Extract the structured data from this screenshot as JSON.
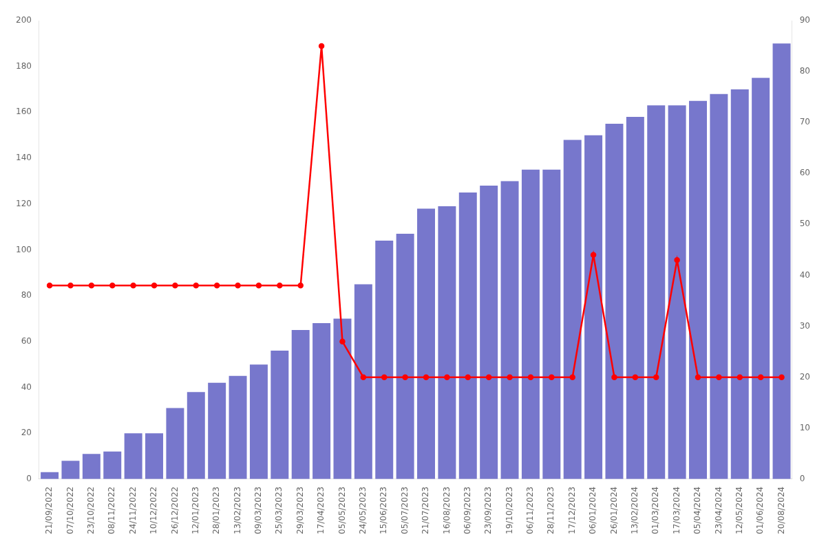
{
  "chart_data": {
    "type": "bar",
    "categories": [
      "21/09/2022",
      "07/10/2022",
      "23/10/2022",
      "08/11/2022",
      "24/11/2022",
      "10/12/2022",
      "26/12/2022",
      "12/01/2023",
      "28/01/2023",
      "13/02/2023",
      "09/03/2023",
      "25/03/2023",
      "29/03/2023",
      "17/04/2023",
      "05/05/2023",
      "24/05/2023",
      "15/06/2023",
      "05/07/2023",
      "21/07/2023",
      "16/08/2023",
      "06/09/2023",
      "23/09/2023",
      "19/10/2023",
      "06/11/2023",
      "28/11/2023",
      "17/12/2023",
      "06/01/2024",
      "26/01/2024",
      "13/02/2024",
      "01/03/2024",
      "17/03/2024",
      "05/04/2024",
      "23/04/2024",
      "12/05/2024",
      "01/06/2024",
      "20/08/2024"
    ],
    "series": [
      {
        "type": "bar",
        "color": "#7777cc",
        "values": [
          3,
          8,
          11,
          12,
          20,
          20,
          31,
          38,
          42,
          45,
          50,
          56,
          65,
          68,
          70,
          85,
          104,
          107,
          118,
          119,
          125,
          128,
          130,
          135,
          135,
          148,
          150,
          155,
          158,
          163,
          163,
          165,
          168,
          170,
          175,
          190
        ]
      },
      {
        "type": "line",
        "color": "#ff0000",
        "marker": "circle",
        "line_style": "solid",
        "axis": "y2",
        "values": [
          38,
          38,
          38,
          38,
          38,
          38,
          38,
          38,
          38,
          38,
          38,
          38,
          38,
          85,
          27,
          20,
          20,
          20,
          20,
          20,
          20,
          20,
          20,
          20,
          20,
          20,
          44,
          20,
          20,
          20,
          43,
          20,
          20,
          20,
          20,
          20
        ]
      }
    ],
    "ylim": [
      0,
      200
    ],
    "yticks": [
      0,
      20,
      40,
      60,
      80,
      100,
      120,
      140,
      160,
      180,
      200
    ],
    "y2lim": [
      0,
      90
    ],
    "y2ticks": [
      0,
      10,
      20,
      30,
      40,
      50,
      60,
      70,
      80,
      90
    ],
    "grid": false
  }
}
